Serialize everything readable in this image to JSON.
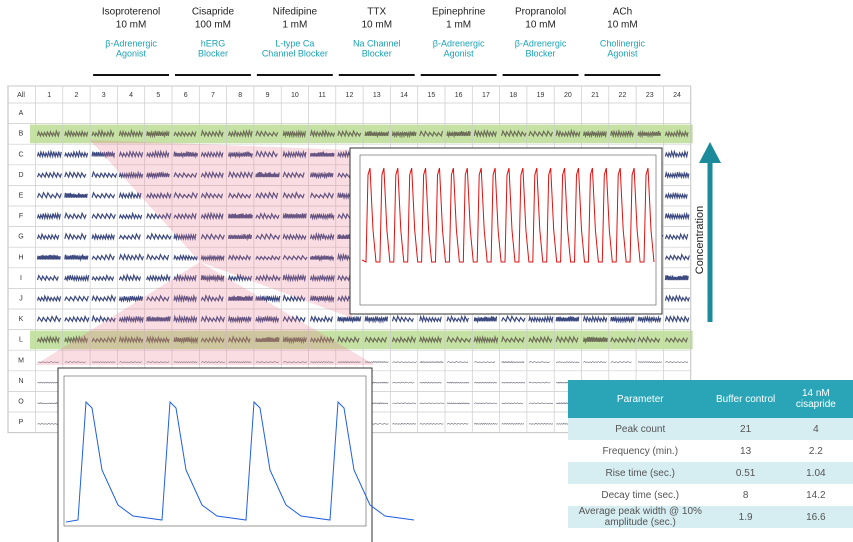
{
  "drugs": [
    {
      "name": "Isoproterenol",
      "conc": "10 mM",
      "class_lines": [
        "β-Adrenergic",
        "Agonist"
      ]
    },
    {
      "name": "Cisapride",
      "conc": "100 mM",
      "class_lines": [
        "hERG",
        "Blocker"
      ]
    },
    {
      "name": "Nifedipine",
      "conc": "1 mM",
      "class_lines": [
        "L-type Ca",
        "Channel Blocker"
      ]
    },
    {
      "name": "TTX",
      "conc": "10 mM",
      "class_lines": [
        "Na Channel",
        "Blocker"
      ]
    },
    {
      "name": "Epinephrine",
      "conc": "1 mM",
      "class_lines": [
        "β-Adrenergic",
        "Agonist"
      ]
    },
    {
      "name": "Propranolol",
      "conc": "10 mM",
      "class_lines": [
        "β-Adrenergic",
        "Blocker"
      ]
    },
    {
      "name": "ACh",
      "conc": "10 mM",
      "class_lines": [
        "Cholinergic",
        "Agonist"
      ]
    }
  ],
  "plate": {
    "corner": "All",
    "columns": [
      "1",
      "2",
      "3",
      "4",
      "5",
      "6",
      "7",
      "8",
      "9",
      "10",
      "11",
      "12",
      "13",
      "14",
      "15",
      "16",
      "17",
      "18",
      "19",
      "20",
      "21",
      "22",
      "23",
      "24"
    ],
    "rows": [
      "A",
      "B",
      "C",
      "D",
      "E",
      "F",
      "G",
      "H",
      "I",
      "J",
      "K",
      "L",
      "M",
      "N",
      "O",
      "P"
    ]
  },
  "arrow_label": "Concentration",
  "table": {
    "header": [
      "Parameter",
      "Buffer control",
      "14 nM cisapride"
    ],
    "rows": [
      [
        "Peak count",
        21,
        4
      ],
      [
        "Frequency (min.)",
        13,
        2.2
      ],
      [
        "Rise time (sec.)",
        0.51,
        1.04
      ],
      [
        "Decay time (sec.)",
        8,
        14.2
      ],
      [
        "Average peak width @ 10% amplitude (sec.)",
        1.9,
        16.6
      ]
    ]
  }
}
